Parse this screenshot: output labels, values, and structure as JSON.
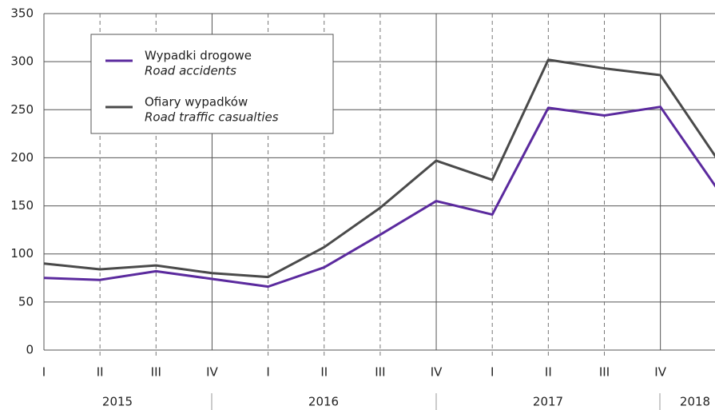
{
  "chart_data": {
    "type": "line",
    "categories": [
      "I",
      "II",
      "III",
      "IV",
      "I",
      "II",
      "III",
      "IV",
      "I",
      "II",
      "III",
      "IV",
      null
    ],
    "years": [
      "2015",
      "2016",
      "2017",
      "2018"
    ],
    "series": [
      {
        "name": "Wypadki drogowe",
        "name_en": "Road accidents",
        "color": "#5b2a9e",
        "values": [
          75,
          73,
          82,
          74,
          66,
          86,
          120,
          155,
          141,
          252,
          244,
          253,
          169
        ]
      },
      {
        "name": "Ofiary wypadków",
        "name_en": "Road traffic casualties",
        "color": "#4a4a4a",
        "values": [
          90,
          84,
          88,
          80,
          76,
          107,
          148,
          197,
          177,
          302,
          293,
          286,
          200
        ]
      }
    ],
    "ylim": [
      0,
      350
    ],
    "yticks": [
      0,
      50,
      100,
      150,
      200,
      250,
      300,
      350
    ],
    "grid": true
  }
}
